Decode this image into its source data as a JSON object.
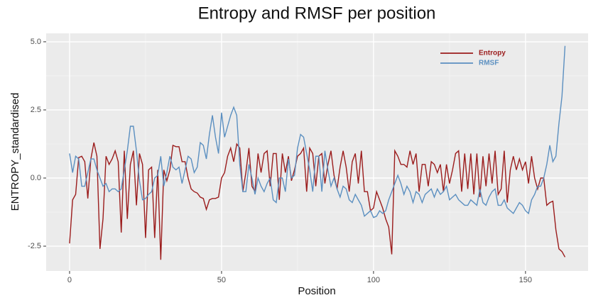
{
  "chart_data": {
    "type": "line",
    "title": "Entropy and RMSF per position",
    "x_label": "Position",
    "y_label": "ENTROPY_standardised",
    "x": [
      0,
      1,
      2,
      3,
      4,
      5,
      6,
      7,
      8,
      9,
      10,
      11,
      12,
      13,
      14,
      15,
      16,
      17,
      18,
      19,
      20,
      21,
      22,
      23,
      24,
      25,
      26,
      27,
      28,
      29,
      30,
      31,
      32,
      33,
      34,
      35,
      36,
      37,
      38,
      39,
      40,
      41,
      42,
      43,
      44,
      45,
      46,
      47,
      48,
      49,
      50,
      51,
      52,
      53,
      54,
      55,
      56,
      57,
      58,
      59,
      60,
      61,
      62,
      63,
      64,
      65,
      66,
      67,
      68,
      69,
      70,
      71,
      72,
      73,
      74,
      75,
      76,
      77,
      78,
      79,
      80,
      81,
      82,
      83,
      84,
      85,
      86,
      87,
      88,
      89,
      90,
      91,
      92,
      93,
      94,
      95,
      96,
      97,
      98,
      99,
      100,
      101,
      102,
      103,
      104,
      105,
      106,
      107,
      108,
      109,
      110,
      111,
      112,
      113,
      114,
      115,
      116,
      117,
      118,
      119,
      120,
      121,
      122,
      123,
      124,
      125,
      126,
      127,
      128,
      129,
      130,
      131,
      132,
      133,
      134,
      135,
      136,
      137,
      138,
      139,
      140,
      141,
      142,
      143,
      144,
      145,
      146,
      147,
      148,
      149,
      150,
      151,
      152,
      153,
      154,
      155,
      156,
      157,
      158,
      159,
      160,
      161,
      162,
      163
    ],
    "series": [
      {
        "name": "Entropy",
        "color": "#9b1c1c",
        "values": [
          -2.4,
          -0.8,
          -0.6,
          0.75,
          0.8,
          0.6,
          -0.75,
          0.7,
          1.3,
          0.8,
          -2.6,
          -1.5,
          0.8,
          0.5,
          0.7,
          1.0,
          0.6,
          -2.0,
          1.0,
          -1.5,
          0.5,
          1.0,
          -1.0,
          0.9,
          0.5,
          -2.2,
          0.3,
          0.4,
          -2.2,
          0.3,
          -3.0,
          0.3,
          -0.1,
          0.3,
          1.2,
          1.15,
          1.15,
          0.6,
          0.6,
          0,
          -0.4,
          -0.5,
          -0.55,
          -0.7,
          -0.75,
          -1.15,
          -0.8,
          -0.75,
          -0.75,
          -0.7,
          0,
          0.2,
          0.8,
          1.1,
          0.6,
          1.25,
          1.1,
          -0.5,
          0.2,
          1.1,
          -0.3,
          -0.5,
          0.9,
          0.2,
          0.9,
          1.0,
          -0.3,
          0.9,
          0.9,
          -0.8,
          0.9,
          0.2,
          0.8,
          -0.1,
          0.3,
          0.8,
          0.9,
          1.1,
          -0.5,
          1.1,
          0.9,
          -0.3,
          0.8,
          0.9,
          -0.2,
          0.5,
          1.0,
          0.1,
          -0.4,
          0.4,
          1.0,
          0.4,
          -0.5,
          0.6,
          0.9,
          -0.2,
          1.0,
          -0.5,
          -0.5,
          -1.2,
          -1.1,
          -0.5,
          -0.8,
          -1.1,
          -1.5,
          -1.8,
          -2.8,
          1.0,
          0.8,
          0.5,
          0.5,
          0.4,
          1.0,
          0.5,
          0.9,
          -0.5,
          0.5,
          0.5,
          -0.3,
          0.6,
          0.5,
          0.2,
          0.5,
          -0.5,
          0.5,
          -0.2,
          0.3,
          0.9,
          1.0,
          -0.5,
          0.9,
          -0.4,
          0.9,
          -0.6,
          0.9,
          -0.7,
          0.8,
          -0.3,
          0.9,
          -0.2,
          1.0,
          -0.6,
          -0.4,
          1.0,
          -0.9,
          0.3,
          0.8,
          0.3,
          0.7,
          0.3,
          0.6,
          -0.2,
          0.8,
          0,
          -0.4,
          0,
          0,
          -1.0,
          -0.9,
          -0.85,
          -1.9,
          -2.6,
          -2.7,
          -2.9
        ]
      },
      {
        "name": "RMSF",
        "color": "#5b8fc0",
        "values": [
          0.9,
          0.2,
          0.8,
          0.7,
          -0.3,
          -0.3,
          0.2,
          0.7,
          0.7,
          0.3,
          0.0,
          -0.3,
          -0.2,
          -0.5,
          -0.4,
          -0.4,
          -0.5,
          -0.4,
          0.3,
          1.0,
          1.9,
          1.9,
          1.0,
          -0.1,
          -0.8,
          -0.75,
          -0.6,
          -0.5,
          0.0,
          0.1,
          0.8,
          -0.3,
          0.2,
          0.8,
          0.4,
          0.3,
          0.4,
          -0.2,
          0.3,
          0.8,
          0.7,
          0.2,
          0.4,
          1.3,
          1.2,
          0.7,
          1.6,
          2.3,
          1.5,
          0.9,
          2.4,
          1.5,
          1.9,
          2.3,
          2.6,
          2.3,
          0.5,
          -0.5,
          -0.5,
          0.5,
          0.0,
          -0.6,
          0.0,
          -0.3,
          -0.5,
          -0.2,
          0.0,
          -0.8,
          -0.9,
          0.0,
          0.0,
          -0.5,
          0.7,
          0.0,
          0.1,
          1.1,
          1.6,
          1.5,
          0.9,
          0.3,
          -0.5,
          0.8,
          0.8,
          -0.5,
          1.0,
          0.3,
          -0.3,
          0.0,
          -0.4,
          -0.7,
          -0.3,
          -0.4,
          -0.8,
          -0.9,
          -0.6,
          -0.8,
          -1.0,
          -1.4,
          -1.3,
          -1.2,
          -1.45,
          -1.4,
          -1.2,
          -1.3,
          -1.2,
          -0.8,
          -0.5,
          -0.2,
          0.1,
          -0.2,
          -0.6,
          -0.3,
          -0.5,
          -0.9,
          -0.5,
          -0.6,
          -0.9,
          -0.6,
          -0.5,
          -0.4,
          -0.7,
          -0.4,
          -0.6,
          -0.5,
          -0.3,
          -0.8,
          -0.7,
          -0.6,
          -0.8,
          -0.9,
          -1.0,
          -1.0,
          -0.8,
          -0.9,
          -1.0,
          -0.4,
          -0.9,
          -1.0,
          -0.7,
          -0.5,
          -0.4,
          -1.0,
          -1.0,
          -0.8,
          -1.1,
          -1.2,
          -1.3,
          -1.1,
          -0.9,
          -1.0,
          -1.2,
          -1.3,
          -0.8,
          -0.6,
          -0.3,
          -0.3,
          0.0,
          0.5,
          1.2,
          0.6,
          0.8,
          2.0,
          3.0,
          4.85
        ]
      }
    ],
    "xlim": [
      -7.7,
      170.6
    ],
    "xticks": [
      0,
      50,
      100,
      150
    ],
    "ylim": [
      -3.41,
      5.31
    ],
    "yticks": [
      {
        "value": -2.5,
        "label": "-2.5"
      },
      {
        "value": 0,
        "label": "0.0"
      },
      {
        "value": 2.5,
        "label": "2.5"
      },
      {
        "value": 5,
        "label": "5.0"
      }
    ],
    "grid": true,
    "legend": "top-right"
  }
}
